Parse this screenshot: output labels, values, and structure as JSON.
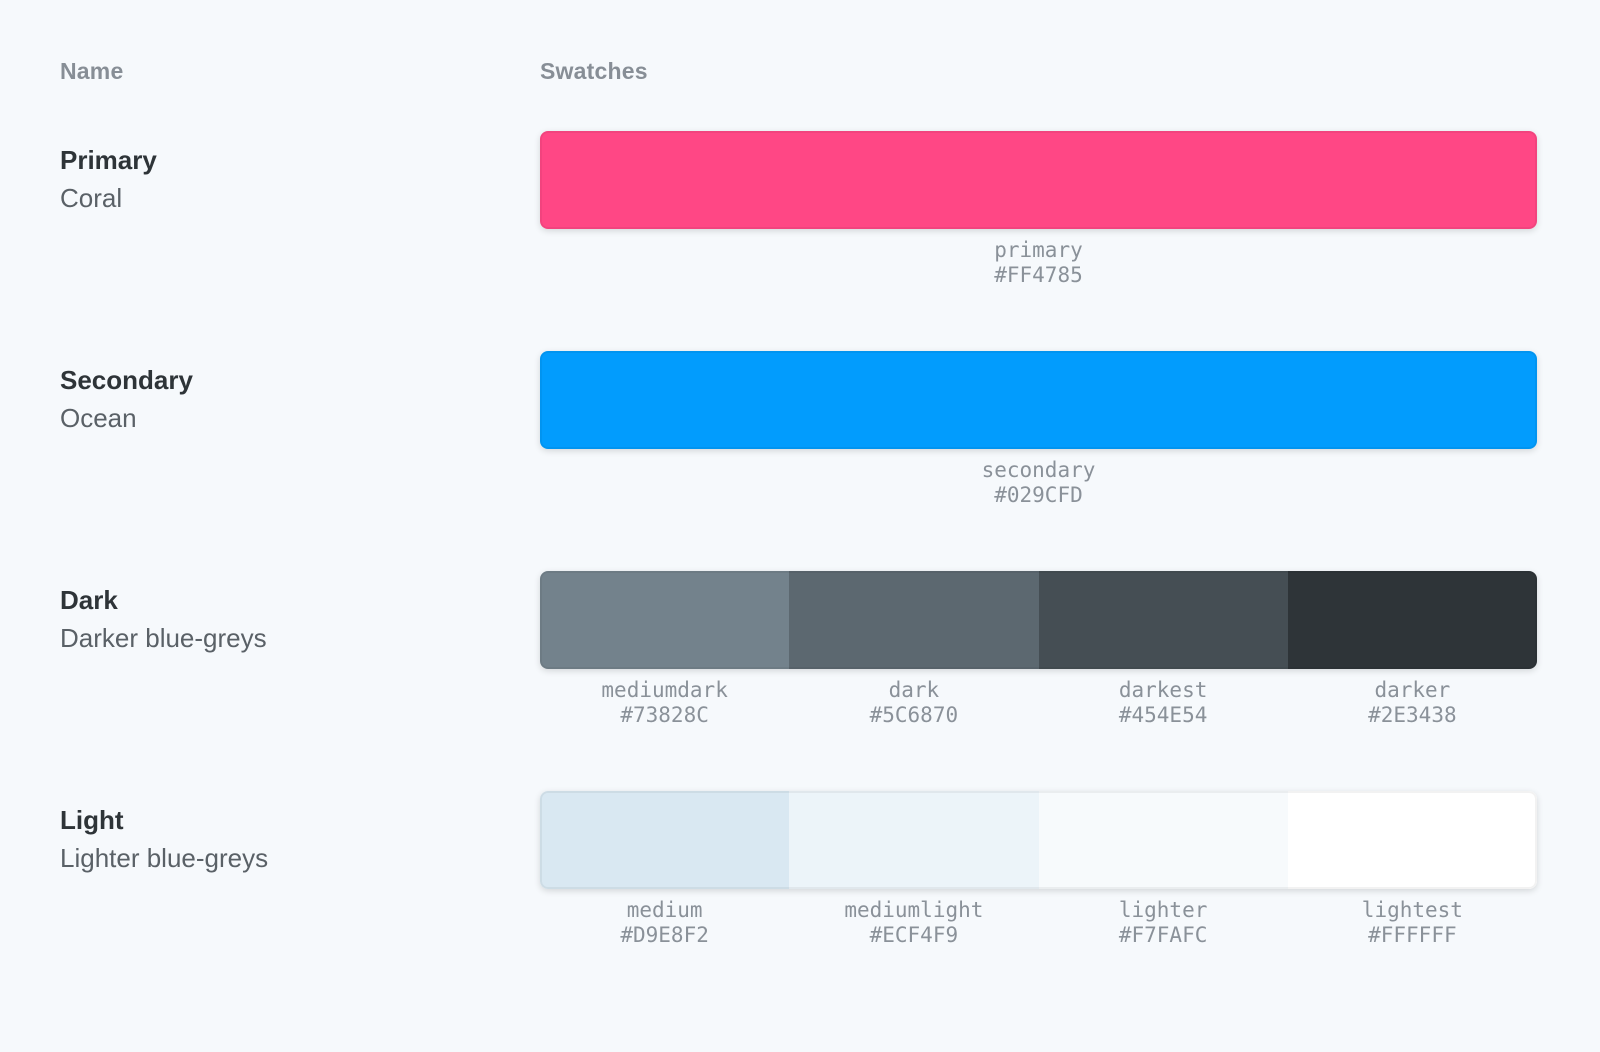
{
  "page": {
    "background_color": "#F6F9FC"
  },
  "table": {
    "headers": {
      "name": "Name",
      "swatches": "Swatches"
    },
    "rows": [
      {
        "title": "Primary",
        "subtitle": "Coral",
        "swatches": [
          {
            "name": "primary",
            "value": "#FF4785"
          }
        ]
      },
      {
        "title": "Secondary",
        "subtitle": "Ocean",
        "swatches": [
          {
            "name": "secondary",
            "value": "#029CFD"
          }
        ]
      },
      {
        "title": "Dark",
        "subtitle": "Darker blue-greys",
        "swatches": [
          {
            "name": "mediumdark",
            "value": "#73828C"
          },
          {
            "name": "dark",
            "value": "#5C6870"
          },
          {
            "name": "darkest",
            "value": "#454E54"
          },
          {
            "name": "darker",
            "value": "#2E3438"
          }
        ]
      },
      {
        "title": "Light",
        "subtitle": "Lighter blue-greys",
        "swatches": [
          {
            "name": "medium",
            "value": "#D9E8F2"
          },
          {
            "name": "mediumlight",
            "value": "#ECF4F9"
          },
          {
            "name": "lighter",
            "value": "#F7FAFC"
          },
          {
            "name": "lightest",
            "value": "#FFFFFF"
          }
        ]
      }
    ]
  }
}
